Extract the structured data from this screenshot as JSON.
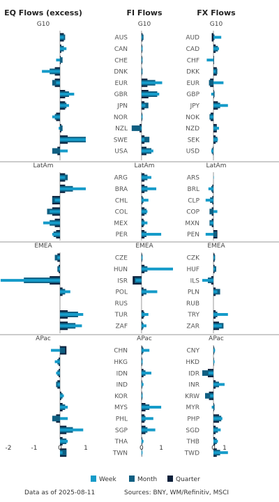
{
  "colors": {
    "week": "#159BC9",
    "month": "#0F5F82",
    "quarter": "#0B1F3A",
    "rule": "#999999"
  },
  "legend": {
    "week": "Week",
    "month": "Month",
    "quarter": "Quarter"
  },
  "footer": {
    "asof": "Data as of 2025-08-11",
    "sources": "Sources:  BNY, WM/Refinitiv, MSCI"
  },
  "chart_data": [
    {
      "type": "bar",
      "orientation": "horizontal",
      "title": "EQ Flows (excess)",
      "xlim": [
        -2,
        1
      ],
      "xticks": [
        -2,
        -1,
        0,
        1
      ],
      "groups": [
        {
          "region": "G10",
          "categories": [
            "AUS",
            "CAN",
            "CHE",
            "DNK",
            "EUR",
            "GBR",
            "JPN",
            "NOR",
            "NZL",
            "SWE",
            "USA"
          ],
          "series": [
            {
              "name": "Week",
              "values": [
                0.15,
                0.25,
                -0.15,
                -0.7,
                -0.15,
                0.55,
                0.35,
                -0.3,
                -0.05,
                1.0,
                0.3
              ]
            },
            {
              "name": "Month",
              "values": [
                0.2,
                0.15,
                0.1,
                -0.4,
                -0.3,
                0.35,
                0.25,
                -0.2,
                0.1,
                1.0,
                -0.3
              ]
            },
            {
              "name": "Quarter",
              "values": [
                0.15,
                0.05,
                0.03,
                -0.2,
                -0.2,
                0.2,
                0.2,
                -0.15,
                0.05,
                0.3,
                -0.1
              ]
            }
          ]
        },
        {
          "region": "LatAm",
          "categories": [
            "ARG",
            "BRA",
            "CHL",
            "COL",
            "MEX",
            "PER"
          ],
          "series": [
            {
              "name": "Week",
              "values": [
                0.2,
                1.0,
                -0.2,
                -0.4,
                -0.65,
                -0.3
              ]
            },
            {
              "name": "Month",
              "values": [
                0.3,
                0.5,
                -0.3,
                -0.5,
                -0.4,
                -0.25
              ]
            },
            {
              "name": "Quarter",
              "values": [
                0.2,
                0.2,
                -0.3,
                -0.3,
                -0.2,
                -0.15
              ]
            }
          ]
        },
        {
          "region": "EMEA",
          "categories": [
            "CZE",
            "HUN",
            "ISR",
            "POL",
            "RUS",
            "TUR",
            "ZAF"
          ],
          "series": [
            {
              "name": "Week",
              "values": [
                -0.1,
                -0.05,
                -2.3,
                0.4,
                0.0,
                0.9,
                0.85
              ]
            },
            {
              "name": "Month",
              "values": [
                -0.2,
                -0.1,
                -1.4,
                0.2,
                0.0,
                0.7,
                0.6
              ]
            },
            {
              "name": "Quarter",
              "values": [
                -0.1,
                -0.05,
                -0.4,
                0.1,
                0.0,
                0.3,
                0.3
              ]
            }
          ]
        },
        {
          "region": "APac",
          "categories": [
            "CHN",
            "HKG",
            "IDN",
            "IND",
            "KOR",
            "MYS",
            "PHL",
            "SGP",
            "THA",
            "TWN"
          ],
          "series": [
            {
              "name": "Week",
              "values": [
                -0.35,
                -0.2,
                -0.15,
                -0.1,
                0.15,
                0.3,
                0.3,
                0.9,
                0.3,
                0.1
              ]
            },
            {
              "name": "Month",
              "values": [
                0.2,
                -0.1,
                -0.1,
                -0.15,
                0.1,
                0.2,
                -0.3,
                0.5,
                0.25,
                0.25
              ]
            },
            {
              "name": "Quarter",
              "values": [
                0.25,
                -0.05,
                -0.05,
                -0.1,
                0.05,
                0.1,
                -0.15,
                0.25,
                0.1,
                0.25
              ]
            }
          ]
        }
      ]
    },
    {
      "type": "bar",
      "orientation": "horizontal",
      "title": "FI Flows",
      "xlim": [
        -0.6,
        1.6
      ],
      "xticks": [
        0,
        1
      ],
      "groups": [
        {
          "region": "G10",
          "categories": [
            "AUS",
            "CAN",
            "CHE",
            "DNK",
            "EUR",
            "GBR",
            "JPN",
            "NOR",
            "NZL",
            "SWE",
            "USA"
          ],
          "series": [
            {
              "name": "Week",
              "values": [
                0.05,
                0.05,
                0.03,
                0.02,
                1.05,
                0.9,
                0.2,
                0.05,
                -0.05,
                0.15,
                0.6
              ]
            },
            {
              "name": "Month",
              "values": [
                0.1,
                0.05,
                0.05,
                0.05,
                0.7,
                0.8,
                0.35,
                0.05,
                -0.5,
                0.4,
                0.5
              ]
            },
            {
              "name": "Quarter",
              "values": [
                0.05,
                0.03,
                0.03,
                0.02,
                0.3,
                0.35,
                0.15,
                0.03,
                -0.1,
                0.15,
                0.25
              ]
            }
          ]
        },
        {
          "region": "LatAm",
          "categories": [
            "ARG",
            "BRA",
            "CHL",
            "COL",
            "MEX",
            "PER"
          ],
          "series": [
            {
              "name": "Week",
              "values": [
                0.5,
                0.75,
                0.35,
                0.3,
                0.3,
                1.0
              ]
            },
            {
              "name": "Month",
              "values": [
                0.3,
                0.3,
                0.1,
                0.25,
                0.15,
                0.25
              ]
            },
            {
              "name": "Quarter",
              "values": [
                0.15,
                0.15,
                0.05,
                0.15,
                0.1,
                0.15
              ]
            }
          ]
        },
        {
          "region": "EMEA",
          "categories": [
            "CZE",
            "HUN",
            "ISR",
            "POL",
            "RUS",
            "TUR",
            "ZAF"
          ],
          "series": [
            {
              "name": "Week",
              "values": [
                0.05,
                1.6,
                -0.3,
                0.8,
                0.0,
                0.35,
                0.25
              ]
            },
            {
              "name": "Month",
              "values": [
                0.05,
                0.3,
                -0.35,
                0.25,
                0.0,
                0.15,
                0.1
              ]
            },
            {
              "name": "Quarter",
              "values": [
                0.03,
                0.15,
                -0.45,
                0.1,
                0.0,
                0.1,
                0.05
              ]
            }
          ]
        },
        {
          "region": "APac",
          "categories": [
            "CHN",
            "HKG",
            "IDN",
            "IND",
            "KOR",
            "MYS",
            "PHL",
            "SGP",
            "THA",
            "TWN"
          ],
          "series": [
            {
              "name": "Week",
              "values": [
                0.4,
                0.05,
                0.5,
                0.1,
                0.05,
                1.0,
                0.6,
                0.7,
                0.1,
                0.05
              ]
            },
            {
              "name": "Month",
              "values": [
                0.1,
                0.05,
                0.2,
                0.05,
                0.05,
                0.4,
                0.2,
                0.3,
                0.05,
                0.03
              ]
            },
            {
              "name": "Quarter",
              "values": [
                0.05,
                0.03,
                0.1,
                0.03,
                0.03,
                0.2,
                0.15,
                0.2,
                0.03,
                0.02
              ]
            }
          ]
        }
      ]
    },
    {
      "type": "bar",
      "orientation": "horizontal",
      "title": "FX Flows",
      "xlim": [
        -1.0,
        1.5
      ],
      "xticks": [
        0,
        1
      ],
      "groups": [
        {
          "region": "G10",
          "categories": [
            "AUD",
            "CAD",
            "CHF",
            "DKK",
            "EUR",
            "GBP",
            "JPY",
            "NOK",
            "NZD",
            "SEK",
            "USD"
          ],
          "series": [
            {
              "name": "Week",
              "values": [
                0.7,
                0.5,
                -0.6,
                0.2,
                0.9,
                -0.2,
                1.3,
                -0.3,
                0.5,
                0.4,
                -0.2
              ]
            },
            {
              "name": "Month",
              "values": [
                0.1,
                0.4,
                0.05,
                0.35,
                -0.4,
                0.1,
                0.6,
                -0.35,
                0.3,
                0.35,
                -0.15
              ]
            },
            {
              "name": "Quarter",
              "values": [
                -0.15,
                0.2,
                0.05,
                0.3,
                -0.3,
                0.05,
                0.4,
                -0.25,
                0.3,
                0.2,
                -0.05
              ]
            }
          ]
        },
        {
          "region": "LatAm",
          "categories": [
            "ARS",
            "BRL",
            "CLP",
            "COP",
            "MXN",
            "PEN"
          ],
          "series": [
            {
              "name": "Week",
              "values": [
                0.02,
                -0.45,
                -0.7,
                0.35,
                -0.3,
                -0.7
              ]
            },
            {
              "name": "Month",
              "values": [
                0.0,
                -0.2,
                -0.3,
                -0.35,
                -0.35,
                0.3
              ]
            },
            {
              "name": "Quarter",
              "values": [
                0.0,
                -0.1,
                -0.1,
                -0.15,
                -0.15,
                0.35
              ]
            }
          ]
        },
        {
          "region": "EMEA",
          "categories": [
            "CZK",
            "HUF",
            "ILS",
            "PLN",
            "RUB",
            "TRY",
            "ZAR"
          ],
          "series": [
            {
              "name": "Week",
              "values": [
                0.1,
                0.15,
                -1.0,
                0.35,
                0.0,
                1.3,
                0.75
              ]
            },
            {
              "name": "Month",
              "values": [
                0.15,
                0.25,
                -0.5,
                0.6,
                0.0,
                0.35,
                0.9
              ]
            },
            {
              "name": "Quarter",
              "values": [
                0.1,
                0.1,
                -0.2,
                0.2,
                0.0,
                0.2,
                0.5
              ]
            }
          ]
        },
        {
          "region": "APac",
          "categories": [
            "CNY",
            "HKD",
            "IDR",
            "INR",
            "KRW",
            "MYR",
            "PHP",
            "SGD",
            "THB",
            "TWD"
          ],
          "series": [
            {
              "name": "Week",
              "values": [
                0.15,
                0.1,
                -0.45,
                1.0,
                -0.3,
                -0.15,
                0.8,
                0.65,
                0.4,
                1.3
              ]
            },
            {
              "name": "Month",
              "values": [
                0.1,
                0.05,
                -1.0,
                0.5,
                -0.75,
                0.1,
                0.7,
                0.4,
                0.3,
                0.6
              ]
            },
            {
              "name": "Quarter",
              "values": [
                0.05,
                0.03,
                -0.5,
                0.2,
                -0.4,
                0.05,
                0.5,
                0.2,
                0.15,
                0.3
              ]
            }
          ]
        }
      ]
    }
  ]
}
